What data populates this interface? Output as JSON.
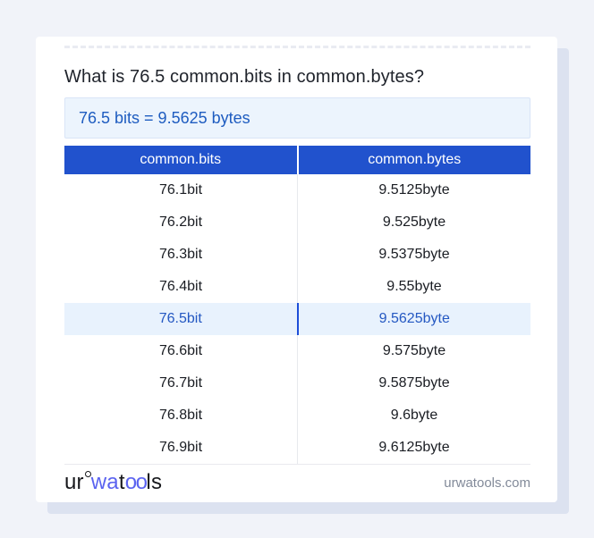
{
  "colors": {
    "page_bg": "#f1f3f9",
    "card_bg": "#ffffff",
    "card_shadow": "#dce2f0",
    "header_blue": "#2152cd",
    "result_text_blue": "#1e5cc0",
    "result_bg": "#ecf4fd",
    "highlight_row_bg": "#e8f2fd",
    "highlight_divider_blue": "#1d4ed8",
    "logo_blue": "#5b63f0",
    "footer_gray": "#828a99"
  },
  "question": {
    "title": "What is 76.5 common.bits in common.bytes?"
  },
  "result": {
    "text": "76.5 bits = 9.5625 bytes"
  },
  "table": {
    "columns": [
      "common.bits",
      "common.bytes"
    ],
    "rows": [
      {
        "bits": "76.1bit",
        "bytes": "9.5125byte",
        "highlight": false
      },
      {
        "bits": "76.2bit",
        "bytes": "9.525byte",
        "highlight": false
      },
      {
        "bits": "76.3bit",
        "bytes": "9.5375byte",
        "highlight": false
      },
      {
        "bits": "76.4bit",
        "bytes": "9.55byte",
        "highlight": false
      },
      {
        "bits": "76.5bit",
        "bytes": "9.5625byte",
        "highlight": true
      },
      {
        "bits": "76.6bit",
        "bytes": "9.575byte",
        "highlight": false
      },
      {
        "bits": "76.7bit",
        "bytes": "9.5875byte",
        "highlight": false
      },
      {
        "bits": "76.8bit",
        "bytes": "9.6byte",
        "highlight": false
      },
      {
        "bits": "76.9bit",
        "bytes": "9.6125byte",
        "highlight": false
      }
    ]
  },
  "footer": {
    "logo": {
      "part1": "ur",
      "part2": "wa",
      "part3": "t",
      "part4": "oo",
      "part5": "ls"
    },
    "site": "urwatools.com"
  }
}
